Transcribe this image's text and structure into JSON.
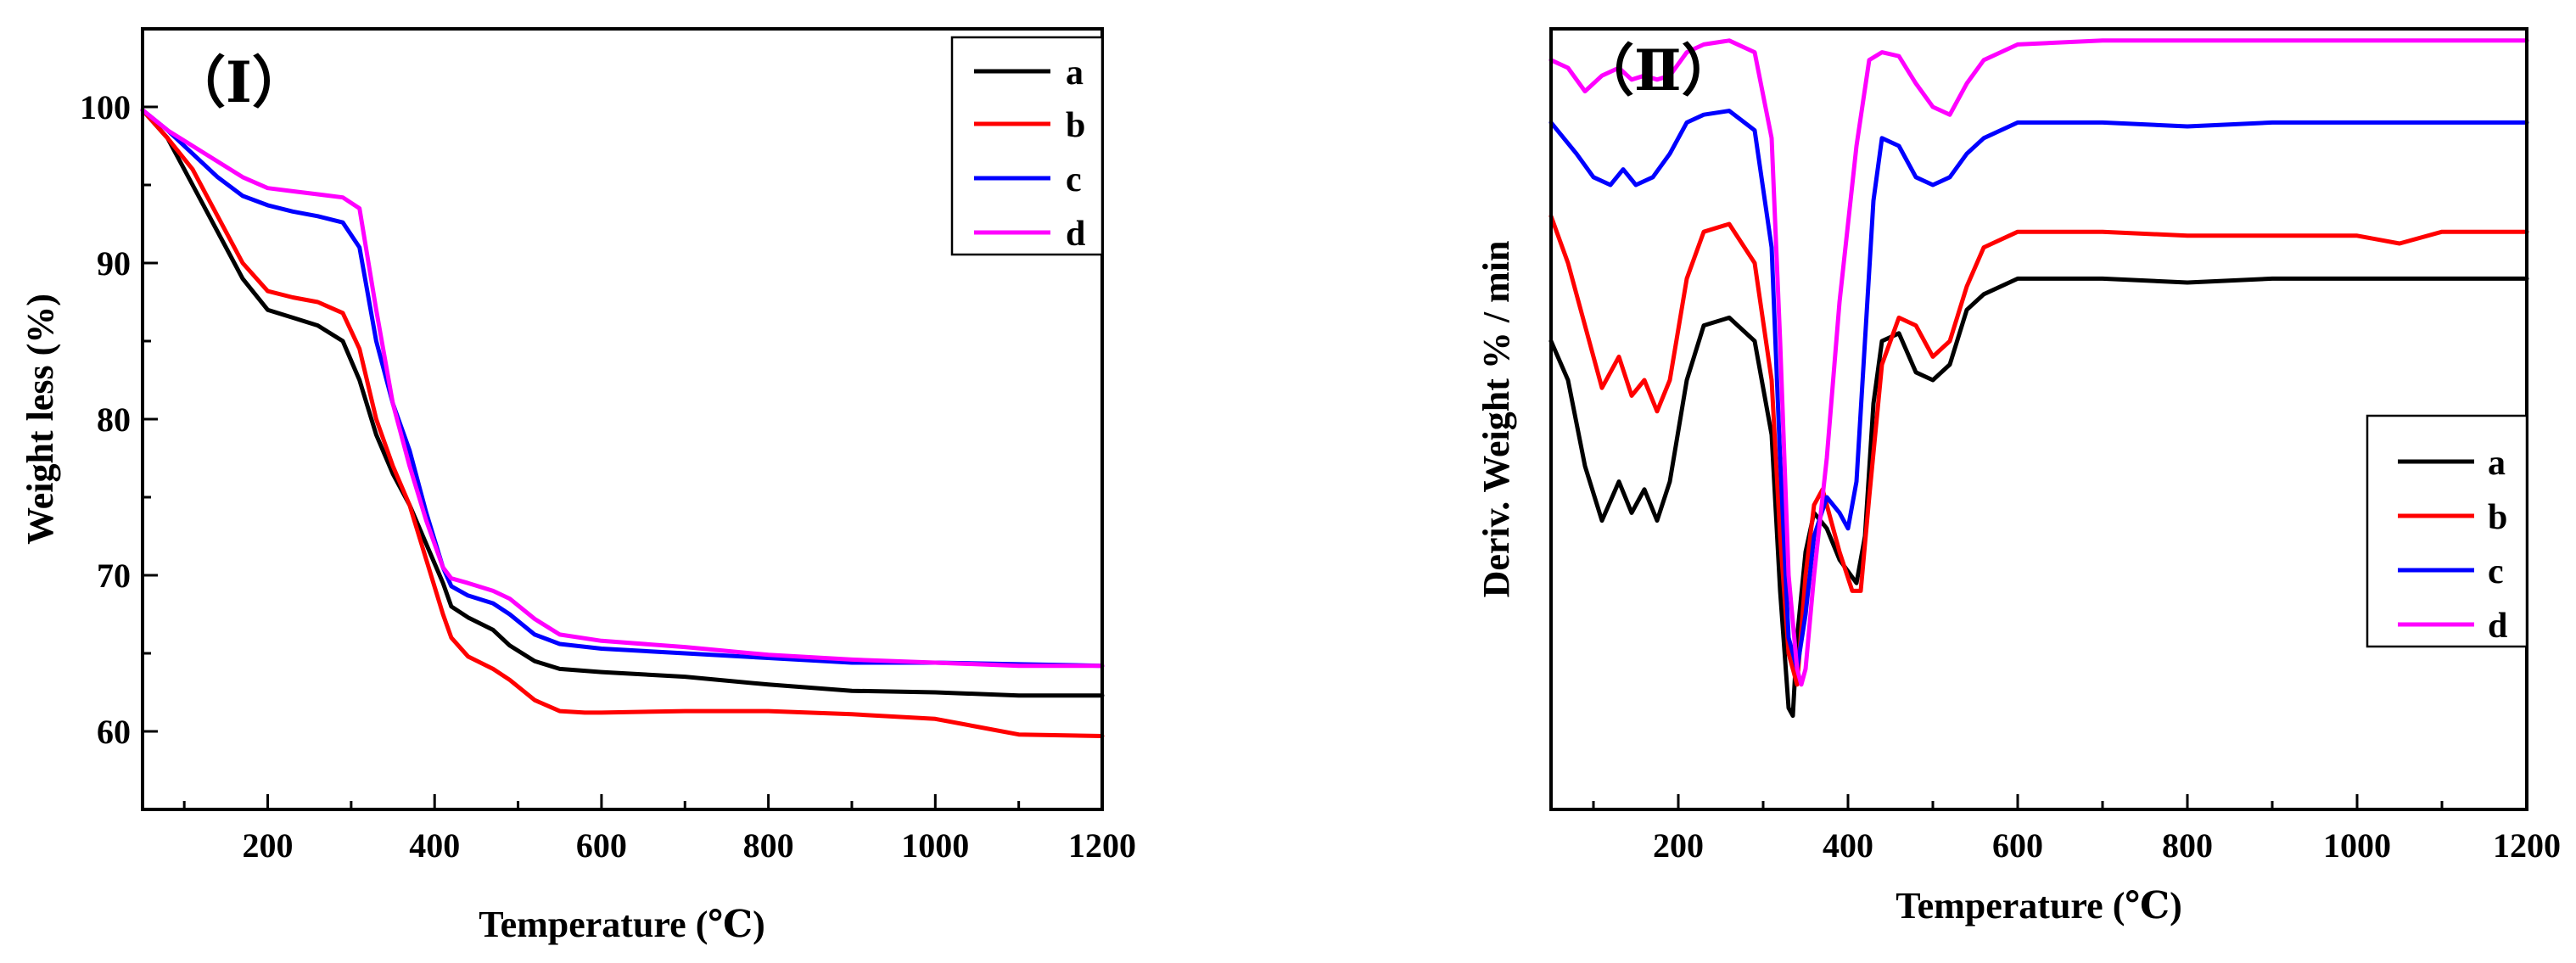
{
  "chart_data": [
    {
      "type": "line",
      "panel_label": "（Ⅰ）",
      "title": "",
      "xlabel": "Temperature (℃)",
      "ylabel": "Weight less (%)",
      "xlim": [
        50,
        1200
      ],
      "ylim": [
        55,
        105
      ],
      "xticks": [
        200,
        400,
        600,
        800,
        1000,
        1200
      ],
      "yticks": [
        60,
        70,
        80,
        90,
        100
      ],
      "legend_position": "top-right",
      "series": [
        {
          "name": "a",
          "color": "#000000",
          "x": [
            50,
            80,
            110,
            140,
            170,
            200,
            230,
            260,
            290,
            310,
            330,
            350,
            370,
            390,
            410,
            420,
            440,
            470,
            490,
            520,
            550,
            600,
            700,
            800,
            900,
            1000,
            1100,
            1200
          ],
          "y": [
            99.8,
            98.0,
            95.0,
            92.0,
            89.0,
            87.0,
            86.5,
            86.0,
            85.0,
            82.5,
            79.0,
            76.5,
            74.5,
            72.0,
            69.5,
            68.0,
            67.3,
            66.5,
            65.5,
            64.5,
            64.0,
            63.8,
            63.5,
            63.0,
            62.6,
            62.5,
            62.3,
            62.3
          ]
        },
        {
          "name": "b",
          "color": "#ff0000",
          "x": [
            50,
            80,
            110,
            140,
            170,
            200,
            230,
            260,
            290,
            310,
            330,
            350,
            370,
            390,
            410,
            420,
            440,
            470,
            490,
            520,
            550,
            580,
            600,
            700,
            800,
            900,
            1000,
            1050,
            1100,
            1200
          ],
          "y": [
            99.8,
            98.0,
            96.0,
            93.0,
            90.0,
            88.2,
            87.8,
            87.5,
            86.8,
            84.5,
            80.0,
            77.0,
            74.5,
            71.0,
            67.5,
            66.0,
            64.8,
            64.0,
            63.3,
            62.0,
            61.3,
            61.2,
            61.2,
            61.3,
            61.3,
            61.1,
            60.8,
            60.3,
            59.8,
            59.7
          ]
        },
        {
          "name": "c",
          "color": "#0000ff",
          "x": [
            50,
            80,
            110,
            140,
            170,
            200,
            230,
            260,
            290,
            310,
            330,
            350,
            370,
            390,
            410,
            420,
            440,
            470,
            490,
            520,
            550,
            600,
            700,
            800,
            900,
            1000,
            1100,
            1200
          ],
          "y": [
            99.8,
            98.5,
            97.0,
            95.5,
            94.3,
            93.7,
            93.3,
            93.0,
            92.6,
            91.0,
            85.0,
            81.0,
            78.0,
            74.0,
            70.5,
            69.3,
            68.7,
            68.2,
            67.5,
            66.2,
            65.6,
            65.3,
            65.0,
            64.7,
            64.4,
            64.4,
            64.3,
            64.2
          ]
        },
        {
          "name": "d",
          "color": "#ff00ff",
          "x": [
            50,
            80,
            110,
            140,
            170,
            200,
            230,
            260,
            290,
            310,
            330,
            350,
            370,
            390,
            410,
            420,
            440,
            470,
            490,
            520,
            550,
            600,
            700,
            800,
            900,
            1000,
            1100,
            1200
          ],
          "y": [
            99.8,
            98.5,
            97.5,
            96.5,
            95.5,
            94.8,
            94.6,
            94.4,
            94.2,
            93.5,
            87.0,
            81.0,
            77.0,
            73.5,
            70.5,
            69.8,
            69.5,
            69.0,
            68.5,
            67.2,
            66.2,
            65.8,
            65.4,
            64.9,
            64.6,
            64.4,
            64.2,
            64.2
          ]
        }
      ]
    },
    {
      "type": "line",
      "panel_label": "（Ⅱ）",
      "title": "",
      "xlabel": "Temperature (℃)",
      "ylabel": "Deriv. Weight  % / min",
      "xlim": [
        50,
        1200
      ],
      "ylim": [
        0,
        100
      ],
      "xticks": [
        200,
        400,
        600,
        800,
        1000,
        1200
      ],
      "yticks": [],
      "legend_position": "center-right",
      "series": [
        {
          "name": "a",
          "color": "#000000",
          "x": [
            50,
            70,
            90,
            110,
            130,
            145,
            160,
            175,
            190,
            210,
            230,
            260,
            290,
            310,
            320,
            330,
            335,
            340,
            350,
            360,
            375,
            390,
            410,
            420,
            430,
            440,
            460,
            480,
            500,
            520,
            540,
            560,
            600,
            700,
            800,
            900,
            1000,
            1100,
            1200
          ],
          "y": [
            60,
            55,
            44,
            37,
            42,
            38,
            41,
            37,
            42,
            55,
            62,
            63,
            60,
            48,
            28,
            13,
            12,
            22,
            33,
            38,
            36,
            32,
            29,
            35,
            52,
            60,
            61,
            56,
            55,
            57,
            64,
            66,
            68,
            68,
            67.5,
            68,
            68,
            68,
            68
          ]
        },
        {
          "name": "b",
          "color": "#ff0000",
          "x": [
            50,
            70,
            90,
            110,
            130,
            145,
            160,
            175,
            190,
            210,
            230,
            260,
            290,
            310,
            320,
            330,
            340,
            350,
            360,
            370,
            390,
            405,
            415,
            425,
            440,
            460,
            480,
            500,
            520,
            540,
            560,
            600,
            700,
            800,
            900,
            1000,
            1050,
            1100,
            1200
          ],
          "y": [
            76,
            70,
            62,
            54,
            58,
            53,
            55,
            51,
            55,
            68,
            74,
            75,
            70,
            55,
            35,
            20,
            16,
            30,
            39,
            41,
            33,
            28,
            28,
            40,
            57,
            63,
            62,
            58,
            60,
            67,
            72,
            74,
            74,
            73.5,
            73.5,
            73.5,
            72.5,
            74,
            74
          ]
        },
        {
          "name": "c",
          "color": "#0000ff",
          "x": [
            50,
            65,
            80,
            100,
            120,
            135,
            150,
            170,
            190,
            210,
            230,
            260,
            290,
            310,
            320,
            330,
            340,
            350,
            360,
            375,
            390,
            400,
            410,
            420,
            430,
            440,
            460,
            480,
            500,
            520,
            540,
            560,
            600,
            700,
            800,
            900,
            1000,
            1100,
            1200
          ],
          "y": [
            88,
            86,
            84,
            81,
            80,
            82,
            80,
            81,
            84,
            88,
            89,
            89.5,
            87,
            72,
            45,
            22,
            18,
            25,
            35,
            40,
            38,
            36,
            42,
            60,
            78,
            86,
            85,
            81,
            80,
            81,
            84,
            86,
            88,
            88,
            87.5,
            88,
            88,
            88,
            88
          ]
        },
        {
          "name": "d",
          "color": "#ff00ff",
          "x": [
            50,
            70,
            90,
            110,
            130,
            145,
            160,
            175,
            190,
            210,
            230,
            260,
            290,
            310,
            320,
            330,
            340,
            345,
            350,
            360,
            375,
            390,
            410,
            425,
            440,
            460,
            480,
            500,
            520,
            540,
            560,
            600,
            700,
            800,
            900,
            1000,
            1100,
            1200
          ],
          "y": [
            96,
            95,
            92,
            94,
            95,
            93.5,
            94,
            93.5,
            94,
            97,
            98,
            98.5,
            97,
            86,
            60,
            30,
            18,
            16,
            18,
            30,
            45,
            65,
            85,
            96,
            97,
            96.5,
            93,
            90,
            89,
            93,
            96,
            98,
            98.5,
            98.5,
            98.5,
            98.5,
            98.5,
            98.5
          ]
        }
      ]
    }
  ]
}
